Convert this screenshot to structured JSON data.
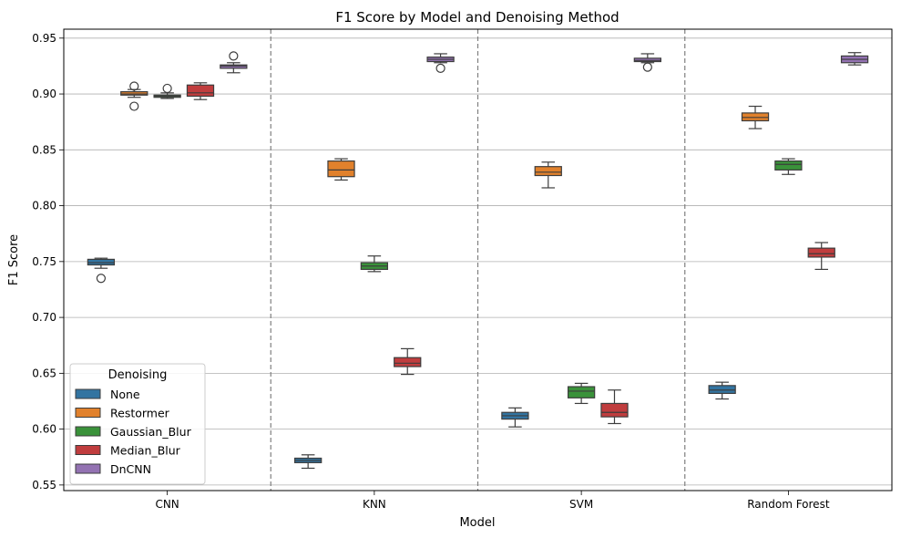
{
  "chart_data": {
    "type": "box",
    "title": "F1 Score by Model and Denoising Method",
    "xlabel": "Model",
    "ylabel": "F1 Score",
    "ylim": [
      0.545,
      0.958
    ],
    "yticks": [
      0.55,
      0.6,
      0.65,
      0.7,
      0.75,
      0.8,
      0.85,
      0.9,
      0.95
    ],
    "ytick_labels": [
      "0.55",
      "0.60",
      "0.65",
      "0.70",
      "0.75",
      "0.80",
      "0.85",
      "0.90",
      "0.95"
    ],
    "grid": "horizontal",
    "legend_position": "lower-left",
    "legend_title": "Denoising",
    "categories": [
      "CNN",
      "KNN",
      "SVM",
      "Random Forest"
    ],
    "series": [
      {
        "name": "None",
        "color": "#3274a1",
        "boxes": [
          {
            "low": 0.744,
            "q1": 0.747,
            "median": 0.749,
            "q3": 0.752,
            "high": 0.753,
            "outliers": [
              0.735
            ]
          },
          {
            "low": 0.565,
            "q1": 0.57,
            "median": 0.572,
            "q3": 0.574,
            "high": 0.577,
            "outliers": []
          },
          {
            "low": 0.602,
            "q1": 0.609,
            "median": 0.612,
            "q3": 0.615,
            "high": 0.619,
            "outliers": []
          },
          {
            "low": 0.627,
            "q1": 0.632,
            "median": 0.635,
            "q3": 0.639,
            "high": 0.642,
            "outliers": []
          }
        ]
      },
      {
        "name": "Restormer",
        "color": "#e1812c",
        "boxes": [
          {
            "low": 0.897,
            "q1": 0.899,
            "median": 0.9,
            "q3": 0.902,
            "high": 0.904,
            "outliers": [
              0.889,
              0.907
            ]
          },
          {
            "low": 0.823,
            "q1": 0.826,
            "median": 0.832,
            "q3": 0.84,
            "high": 0.842,
            "outliers": []
          },
          {
            "low": 0.816,
            "q1": 0.827,
            "median": 0.83,
            "q3": 0.835,
            "high": 0.839,
            "outliers": []
          },
          {
            "low": 0.869,
            "q1": 0.876,
            "median": 0.879,
            "q3": 0.883,
            "high": 0.889,
            "outliers": []
          }
        ]
      },
      {
        "name": "Gaussian_Blur",
        "color": "#3a923a",
        "boxes": [
          {
            "low": 0.896,
            "q1": 0.897,
            "median": 0.898,
            "q3": 0.899,
            "high": 0.901,
            "outliers": [
              0.905
            ]
          },
          {
            "low": 0.741,
            "q1": 0.743,
            "median": 0.746,
            "q3": 0.749,
            "high": 0.755,
            "outliers": []
          },
          {
            "low": 0.623,
            "q1": 0.628,
            "median": 0.634,
            "q3": 0.638,
            "high": 0.641,
            "outliers": []
          },
          {
            "low": 0.828,
            "q1": 0.832,
            "median": 0.837,
            "q3": 0.84,
            "high": 0.842,
            "outliers": []
          }
        ]
      },
      {
        "name": "Median_Blur",
        "color": "#c03d3e",
        "boxes": [
          {
            "low": 0.895,
            "q1": 0.898,
            "median": 0.901,
            "q3": 0.908,
            "high": 0.91,
            "outliers": []
          },
          {
            "low": 0.649,
            "q1": 0.656,
            "median": 0.659,
            "q3": 0.664,
            "high": 0.672,
            "outliers": []
          },
          {
            "low": 0.605,
            "q1": 0.611,
            "median": 0.615,
            "q3": 0.623,
            "high": 0.635,
            "outliers": []
          },
          {
            "low": 0.743,
            "q1": 0.754,
            "median": 0.757,
            "q3": 0.762,
            "high": 0.767,
            "outliers": []
          }
        ]
      },
      {
        "name": "DnCNN",
        "color": "#9372b2",
        "boxes": [
          {
            "low": 0.919,
            "q1": 0.923,
            "median": 0.925,
            "q3": 0.926,
            "high": 0.928,
            "outliers": [
              0.934
            ]
          },
          {
            "low": 0.928,
            "q1": 0.929,
            "median": 0.931,
            "q3": 0.933,
            "high": 0.936,
            "outliers": [
              0.923
            ]
          },
          {
            "low": 0.928,
            "q1": 0.929,
            "median": 0.93,
            "q3": 0.932,
            "high": 0.936,
            "outliers": [
              0.924
            ]
          },
          {
            "low": 0.926,
            "q1": 0.928,
            "median": 0.931,
            "q3": 0.934,
            "high": 0.937,
            "outliers": []
          }
        ]
      }
    ]
  }
}
